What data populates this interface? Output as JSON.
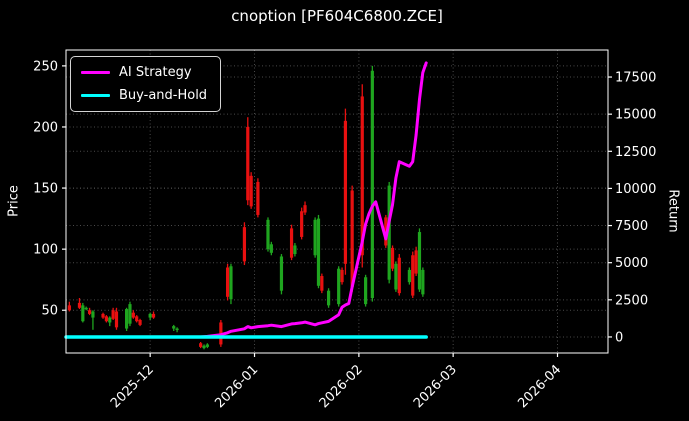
{
  "title": "cnoption [PF604C6800.ZCE]",
  "legend": {
    "items": [
      {
        "label": "AI Strategy",
        "color": "#ff00ff"
      },
      {
        "label": "Buy-and-Hold",
        "color": "#00ffff"
      }
    ]
  },
  "axes": {
    "y_left": {
      "label": "Price"
    },
    "y_right": {
      "label": "Return"
    }
  },
  "chart_data": {
    "type": "candlestick",
    "title": "cnoption [PF604C6800.ZCE]",
    "grid": true,
    "legend_position": "upper left",
    "background": "#000000",
    "x_range": [
      "2025-11-06",
      "2026-04-16"
    ],
    "price_axis": {
      "label": "Price",
      "range": [
        15,
        263
      ],
      "ticks": [
        50,
        100,
        150,
        200,
        250
      ]
    },
    "return_axis": {
      "label": "Return",
      "range": [
        -1080,
        19320
      ],
      "ticks": [
        0,
        2500,
        5000,
        7500,
        10000,
        12500,
        15000,
        17500
      ]
    },
    "x_ticks": [
      {
        "label": "2025-12",
        "date": "2025-12-01"
      },
      {
        "label": "2026-01",
        "date": "2026-01-01"
      },
      {
        "label": "2026-02",
        "date": "2026-02-01"
      },
      {
        "label": "2026-03",
        "date": "2026-03-01"
      },
      {
        "label": "2026-04",
        "date": "2026-04-01"
      }
    ],
    "colors": {
      "up": "#1fa51f",
      "down": "#e81010",
      "grid": "#4a4a4a",
      "spine": "#ffffff",
      "text": "#ffffff"
    },
    "candle_format": [
      "date",
      "open",
      "high",
      "low",
      "close"
    ],
    "candles": [
      [
        "2025-11-07",
        54,
        57,
        49,
        50
      ],
      [
        "2025-11-10",
        56,
        60,
        51,
        52
      ],
      [
        "2025-11-11",
        41,
        56,
        40,
        54
      ],
      [
        "2025-11-12",
        51,
        53,
        50,
        52
      ],
      [
        "2025-11-13",
        50,
        52,
        46,
        47
      ],
      [
        "2025-11-14",
        44,
        50,
        34,
        49
      ],
      [
        "2025-11-17",
        47,
        48,
        43,
        44
      ],
      [
        "2025-11-18",
        45,
        46,
        40,
        41
      ],
      [
        "2025-11-19",
        40,
        45,
        37,
        44
      ],
      [
        "2025-11-20",
        50,
        52,
        42,
        43
      ],
      [
        "2025-11-21",
        49,
        52,
        34,
        36
      ],
      [
        "2025-11-24",
        35,
        52,
        33,
        51
      ],
      [
        "2025-11-25",
        39,
        57,
        37,
        55
      ],
      [
        "2025-11-26",
        48,
        50,
        43,
        44
      ],
      [
        "2025-11-27",
        45,
        46,
        40,
        41
      ],
      [
        "2025-11-28",
        42,
        43,
        37,
        38
      ],
      [
        "2025-12-01",
        44,
        48,
        42,
        47
      ],
      [
        "2025-12-02",
        47,
        49,
        43,
        44
      ],
      [
        "2025-12-08",
        35,
        38,
        33,
        37
      ],
      [
        "2025-12-09",
        34,
        36,
        32,
        35
      ],
      [
        "2025-12-16",
        23,
        24,
        19,
        20
      ],
      [
        "2025-12-17",
        19,
        22,
        18,
        21
      ],
      [
        "2025-12-18",
        20,
        23,
        19,
        22
      ],
      [
        "2025-12-22",
        40,
        42,
        20,
        22
      ],
      [
        "2025-12-24",
        85,
        88,
        58,
        61
      ],
      [
        "2025-12-25",
        59,
        88,
        55,
        86
      ],
      [
        "2025-12-29",
        118,
        122,
        87,
        90
      ],
      [
        "2025-12-30",
        200,
        208,
        136,
        140
      ],
      [
        "2025-12-31",
        160,
        163,
        133,
        135
      ],
      [
        "2026-01-02",
        155,
        158,
        126,
        128
      ],
      [
        "2026-01-05",
        100,
        126,
        98,
        124
      ],
      [
        "2026-01-06",
        97,
        106,
        95,
        104
      ],
      [
        "2026-01-09",
        66,
        96,
        63,
        94
      ],
      [
        "2026-01-12",
        117,
        120,
        91,
        93
      ],
      [
        "2026-01-13",
        96,
        105,
        94,
        103
      ],
      [
        "2026-01-15",
        131,
        134,
        108,
        110
      ],
      [
        "2026-01-16",
        136,
        139,
        128,
        130
      ],
      [
        "2026-01-19",
        95,
        126,
        93,
        124
      ],
      [
        "2026-01-20",
        70,
        128,
        68,
        125
      ],
      [
        "2026-01-21",
        78,
        80,
        64,
        66
      ],
      [
        "2026-01-23",
        54,
        68,
        52,
        66
      ],
      [
        "2026-01-26",
        55,
        86,
        53,
        84
      ],
      [
        "2026-01-27",
        83,
        85,
        71,
        73
      ],
      [
        "2026-01-28",
        205,
        215,
        79,
        88
      ],
      [
        "2026-01-30",
        148,
        152,
        65,
        69
      ],
      [
        "2026-02-02",
        225,
        235,
        85,
        95
      ],
      [
        "2026-02-03",
        55,
        79,
        53,
        77
      ],
      [
        "2026-02-05",
        60,
        250,
        57,
        246
      ],
      [
        "2026-02-09",
        126,
        128,
        101,
        103
      ],
      [
        "2026-02-10",
        75,
        155,
        72,
        152
      ],
      [
        "2026-02-11",
        101,
        103,
        82,
        84
      ],
      [
        "2026-02-12",
        67,
        90,
        65,
        88
      ],
      [
        "2026-02-13",
        93,
        96,
        62,
        64
      ],
      [
        "2026-02-16",
        73,
        85,
        71,
        83
      ],
      [
        "2026-02-17",
        95,
        98,
        60,
        62
      ],
      [
        "2026-02-18",
        99,
        102,
        78,
        80
      ],
      [
        "2026-02-19",
        67,
        117,
        65,
        114
      ],
      [
        "2026-02-20",
        63,
        85,
        61,
        83
      ]
    ],
    "series": [
      {
        "name": "AI Strategy",
        "color": "#ff00ff",
        "axis": "return",
        "width": 3,
        "points": [
          [
            "2025-11-06",
            0
          ],
          [
            "2025-12-16",
            0
          ],
          [
            "2025-12-18",
            40
          ],
          [
            "2025-12-22",
            150
          ],
          [
            "2025-12-24",
            280
          ],
          [
            "2025-12-25",
            380
          ],
          [
            "2025-12-29",
            550
          ],
          [
            "2025-12-30",
            700
          ],
          [
            "2025-12-31",
            620
          ],
          [
            "2026-01-02",
            700
          ],
          [
            "2026-01-05",
            760
          ],
          [
            "2026-01-06",
            790
          ],
          [
            "2026-01-09",
            700
          ],
          [
            "2026-01-12",
            880
          ],
          [
            "2026-01-13",
            900
          ],
          [
            "2026-01-15",
            950
          ],
          [
            "2026-01-16",
            1000
          ],
          [
            "2026-01-19",
            820
          ],
          [
            "2026-01-20",
            900
          ],
          [
            "2026-01-21",
            950
          ],
          [
            "2026-01-23",
            1050
          ],
          [
            "2026-01-26",
            1500
          ],
          [
            "2026-01-27",
            2000
          ],
          [
            "2026-01-28",
            2150
          ],
          [
            "2026-01-29",
            2250
          ],
          [
            "2026-01-30",
            3350
          ],
          [
            "2026-02-02",
            6400
          ],
          [
            "2026-02-03",
            7600
          ],
          [
            "2026-02-04",
            8300
          ],
          [
            "2026-02-05",
            8800
          ],
          [
            "2026-02-06",
            9100
          ],
          [
            "2026-02-09",
            6600
          ],
          [
            "2026-02-10",
            7800
          ],
          [
            "2026-02-11",
            8900
          ],
          [
            "2026-02-12",
            10700
          ],
          [
            "2026-02-13",
            11800
          ],
          [
            "2026-02-16",
            11500
          ],
          [
            "2026-02-17",
            11800
          ],
          [
            "2026-02-18",
            13600
          ],
          [
            "2026-02-19",
            16000
          ],
          [
            "2026-02-20",
            17800
          ],
          [
            "2026-02-21",
            18450
          ]
        ]
      },
      {
        "name": "Buy-and-Hold",
        "color": "#00ffff",
        "axis": "return",
        "width": 3.5,
        "points": [
          [
            "2025-11-06",
            0
          ],
          [
            "2026-02-21",
            0
          ]
        ]
      }
    ]
  }
}
